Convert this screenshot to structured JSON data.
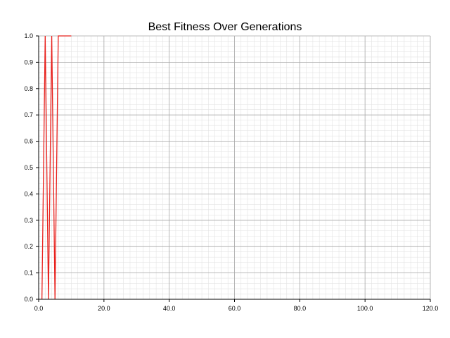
{
  "chart_data": {
    "type": "line",
    "title": "Best Fitness Over Generations",
    "xlabel": "",
    "ylabel": "",
    "xlim": [
      0,
      120
    ],
    "ylim": [
      0,
      1
    ],
    "x_ticks": [
      "0.0",
      "20.0",
      "40.0",
      "60.0",
      "80.0",
      "100.0",
      "120.0"
    ],
    "y_ticks": [
      "0.0",
      "0.1",
      "0.2",
      "0.3",
      "0.4",
      "0.5",
      "0.6",
      "0.7",
      "0.8",
      "0.9",
      "1.0"
    ],
    "grid": true,
    "minor_grid": true,
    "series": [
      {
        "color": "#e8201c",
        "x": [
          1,
          2,
          3,
          4,
          5,
          6,
          7,
          8,
          9,
          10
        ],
        "y": [
          0,
          1,
          0,
          1,
          0,
          1,
          1,
          1,
          1,
          1
        ]
      }
    ]
  }
}
